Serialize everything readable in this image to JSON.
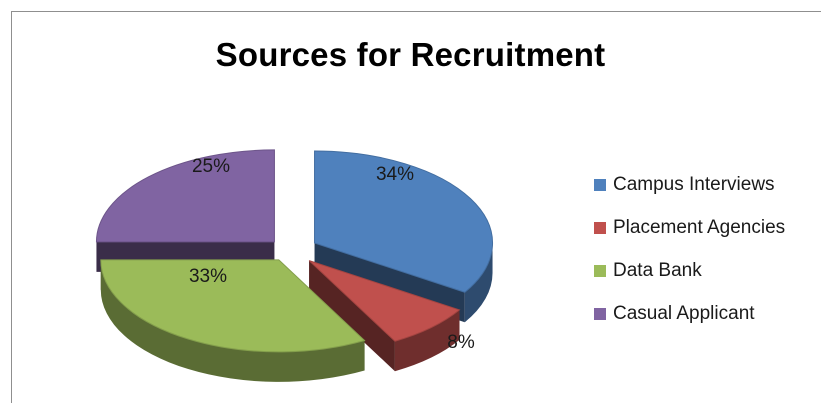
{
  "chart_data": {
    "type": "pie",
    "title": "Sources for Recruitment",
    "categories": [
      "Campus Interviews",
      "Placement Agencies",
      "Data Bank",
      "Casual Applicant"
    ],
    "values": [
      34,
      8,
      33,
      25
    ],
    "labels": [
      "34%",
      "8%",
      "33%",
      "25%"
    ],
    "colors": [
      "#4f81bd",
      "#c0504d",
      "#9bbb59",
      "#8064a2"
    ],
    "exploded": true,
    "three_d": true,
    "legend_position": "right"
  }
}
